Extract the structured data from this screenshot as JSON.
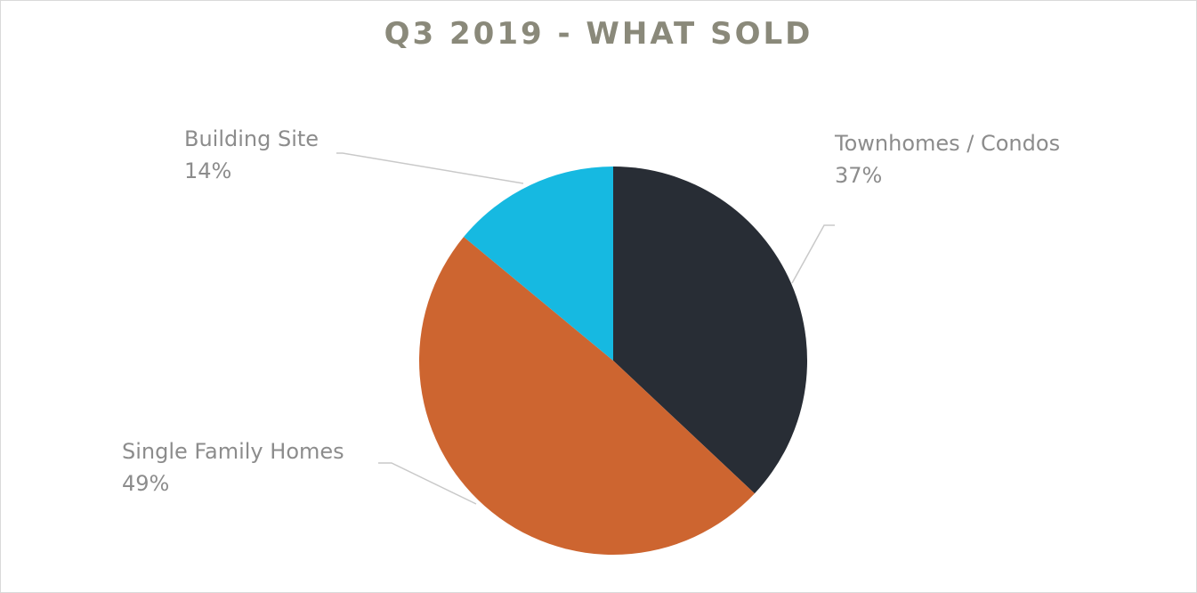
{
  "chart_data": {
    "type": "pie",
    "title": "Q3 2019 - WHAT SOLD",
    "slices": [
      {
        "label": "Townhomes / Condos",
        "value": 37,
        "value_label": "37%",
        "color": "#282d35"
      },
      {
        "label": "Single Family Homes",
        "value": 49,
        "value_label": "49%",
        "color": "#cd6530"
      },
      {
        "label": "Building Site",
        "value": 14,
        "value_label": "14%",
        "color": "#16b9e1"
      }
    ],
    "start": "12 o'clock",
    "direction": "clockwise",
    "legend": "none",
    "data_labels": "category name and percentage, outside with leader lines"
  }
}
